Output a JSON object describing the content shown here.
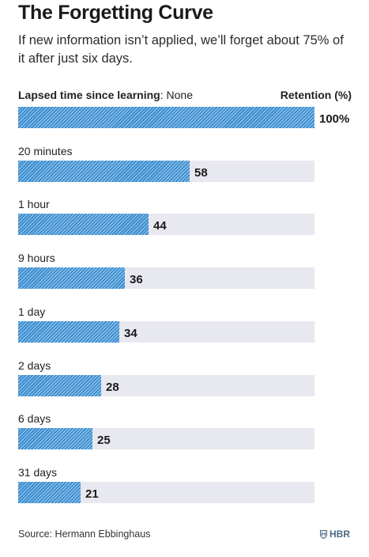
{
  "chart_data": {
    "type": "bar",
    "title": "The Forgetting Curve",
    "subtitle": "If new information isn’t applied, we’ll forget about 75% of it after just six days.",
    "category_header_bold": "Lapsed time since learning",
    "value_header": "Retention (%)",
    "categories": [
      "None",
      "20 minutes",
      "1 hour",
      "9 hours",
      "1 day",
      "2 days",
      "6 days",
      "31 days"
    ],
    "values": [
      100,
      58,
      44,
      36,
      34,
      28,
      25,
      21
    ],
    "value_labels": [
      "100%",
      "58",
      "44",
      "36",
      "34",
      "28",
      "25",
      "21"
    ],
    "xlim": [
      0,
      100
    ],
    "orientation": "horizontal",
    "bar_color": "#3a8ed1",
    "track_color": "#e8e8f0"
  },
  "footer": {
    "source": "Source: Hermann Ebbinghaus",
    "logo": "HBR",
    "logo_icon": "shield-icon"
  }
}
